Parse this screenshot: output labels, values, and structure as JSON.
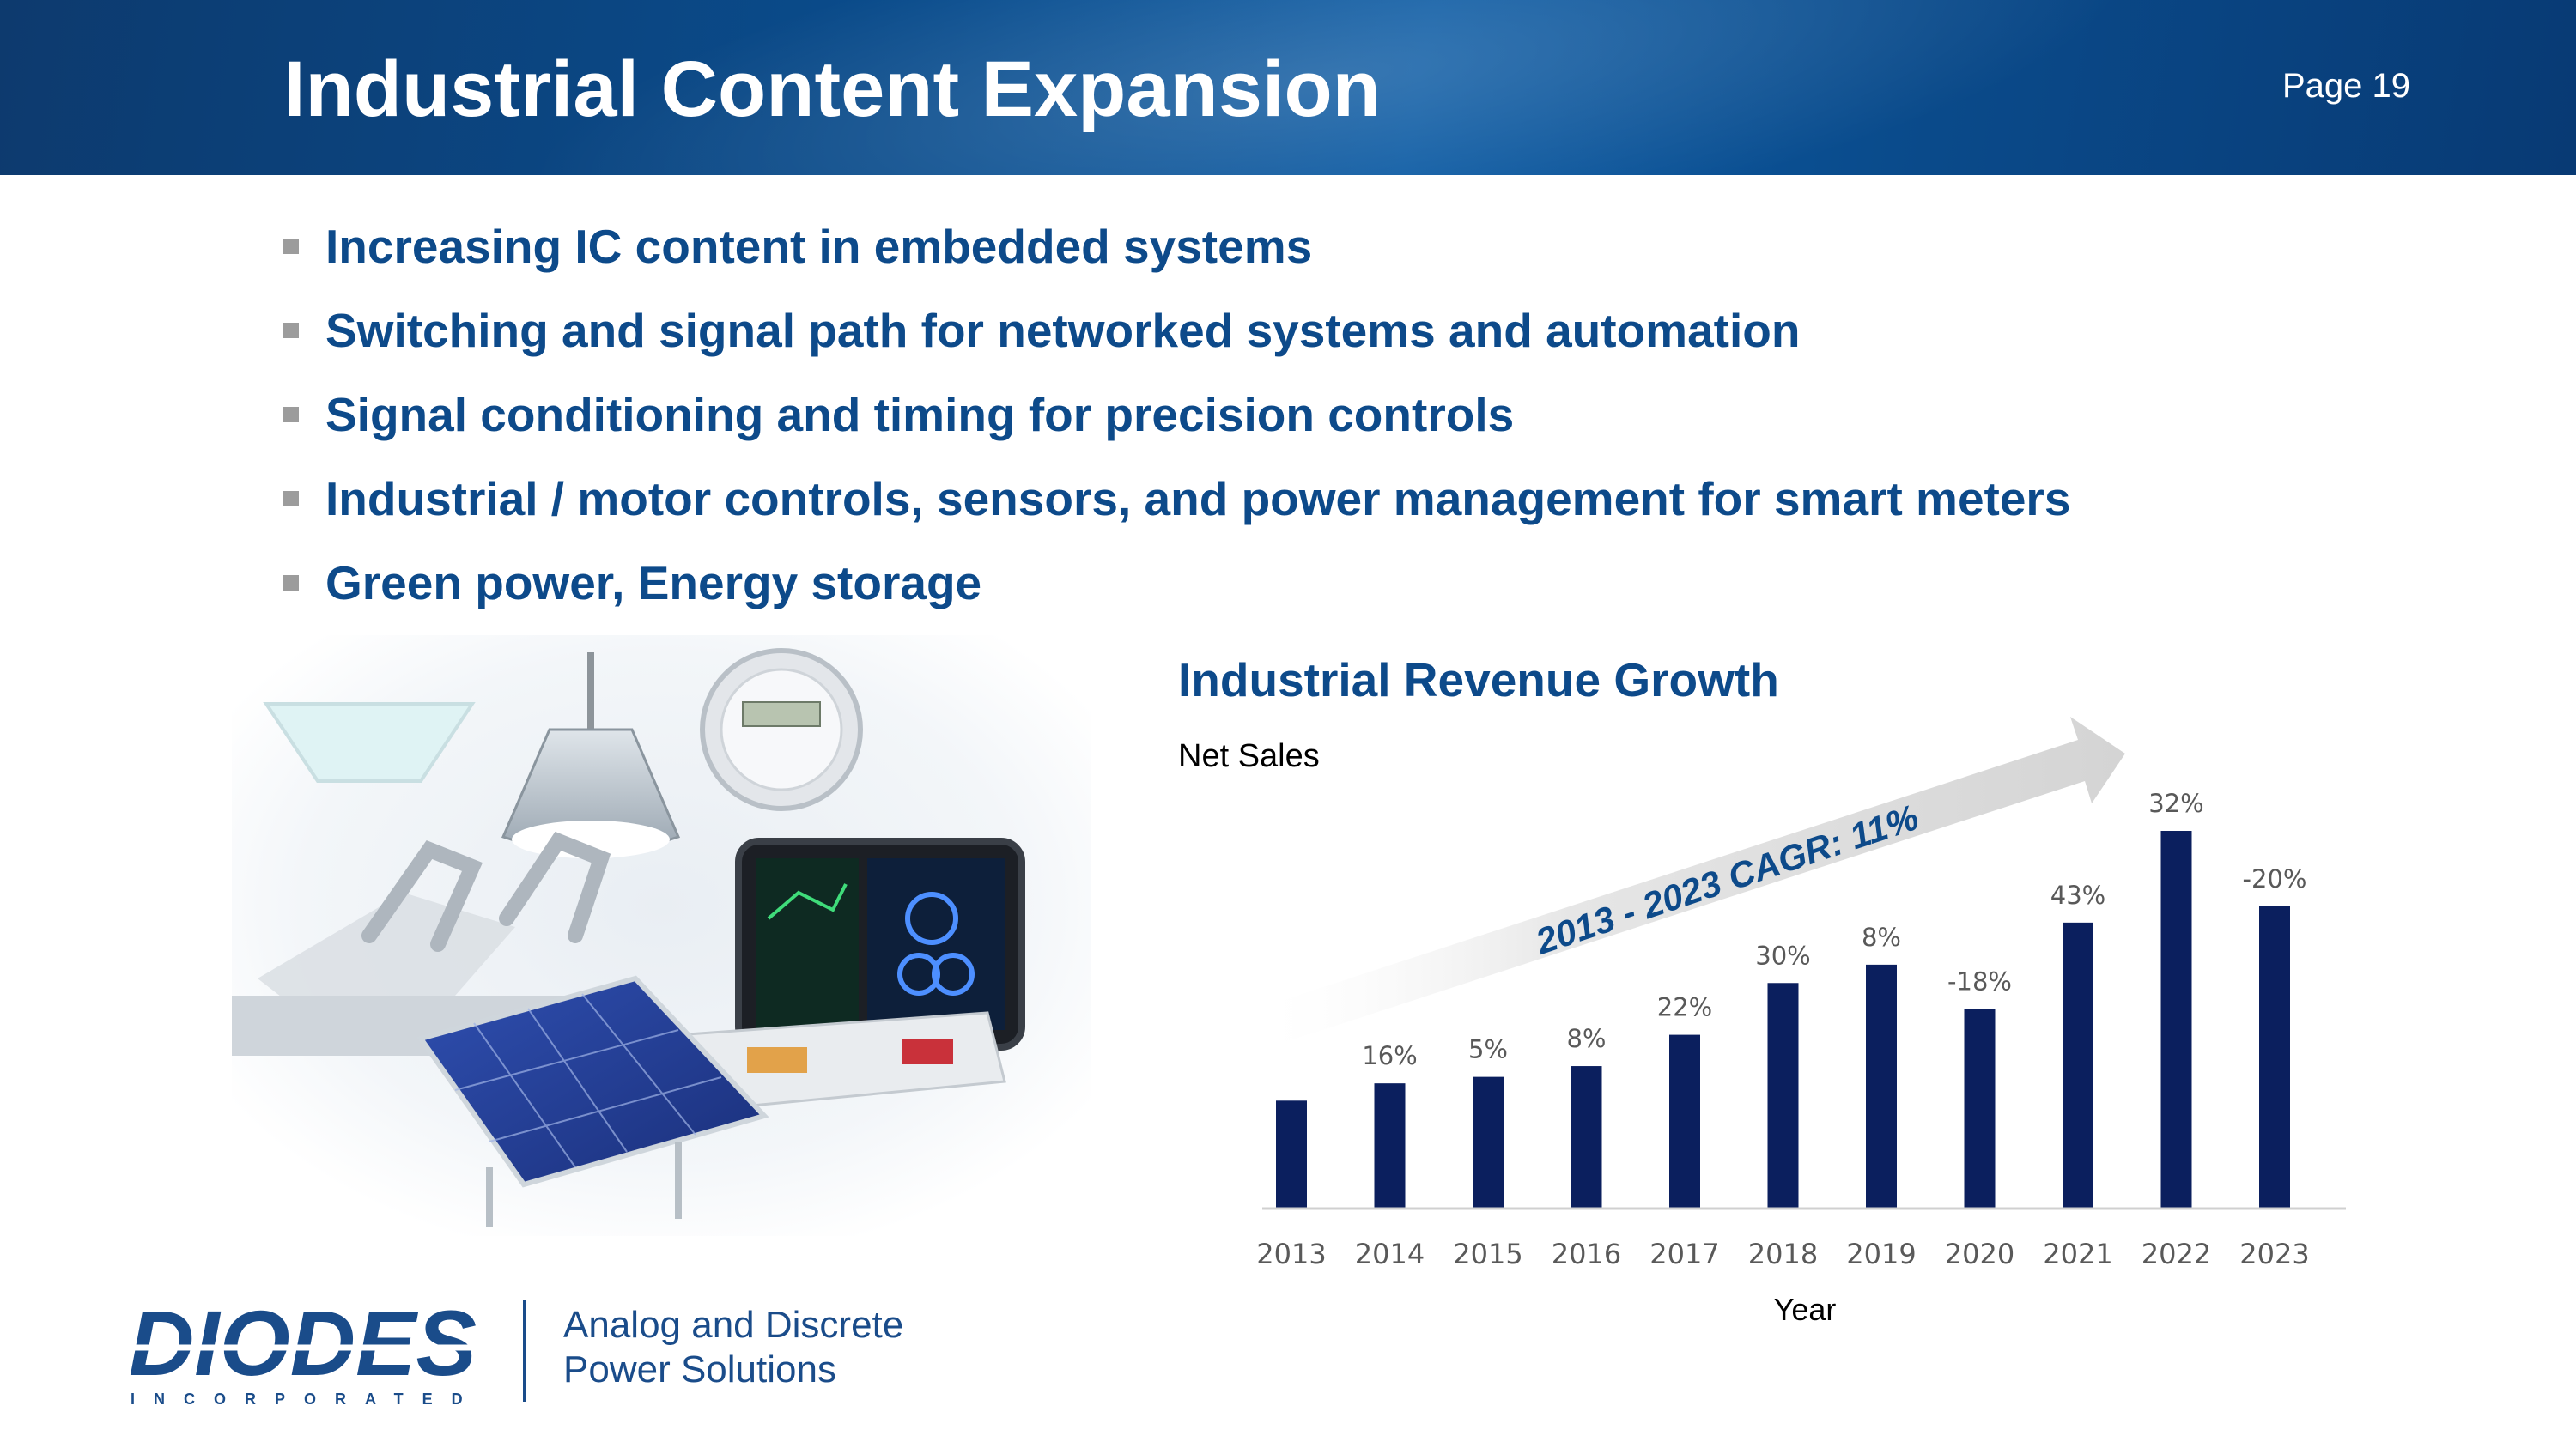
{
  "header": {
    "title": "Industrial Content Expansion",
    "page": "Page 19"
  },
  "bullets": [
    "Increasing IC content in embedded systems",
    "Switching and signal path for networked systems and automation",
    "Signal conditioning and timing for precision controls",
    "Industrial / motor controls, sensors, and power management for smart meters",
    "Green power, Energy storage"
  ],
  "chart": {
    "title": "Industrial Revenue Growth",
    "subtitle": "Net Sales",
    "cagr_label": "2013 - 2023 CAGR: 11%"
  },
  "chart_data": {
    "type": "bar",
    "title": "Industrial Revenue Growth",
    "subtitle": "Net Sales",
    "xlabel": "Year",
    "ylabel": "",
    "categories": [
      "2013",
      "2014",
      "2015",
      "2016",
      "2017",
      "2018",
      "2019",
      "2020",
      "2021",
      "2022",
      "2023"
    ],
    "values": [
      100,
      116,
      122,
      132,
      161,
      209,
      226,
      185,
      265,
      350,
      280
    ],
    "data_labels": [
      "",
      "16%",
      "5%",
      "8%",
      "22%",
      "30%",
      "8%",
      "-18%",
      "43%",
      "32%",
      "-20%"
    ],
    "annotation": "2013 - 2023 CAGR: 11%",
    "color": "#0b1f5e",
    "grid": false
  },
  "footer": {
    "logo_text": "DIODES",
    "logo_sub": "INCORPORATED",
    "tagline_line1": "Analog and Discrete",
    "tagline_line2": "Power Solutions"
  },
  "colors": {
    "brand_blue": "#0d4a8a",
    "bar_navy": "#0b1f5e",
    "header_blue": "#0a4c8c"
  }
}
